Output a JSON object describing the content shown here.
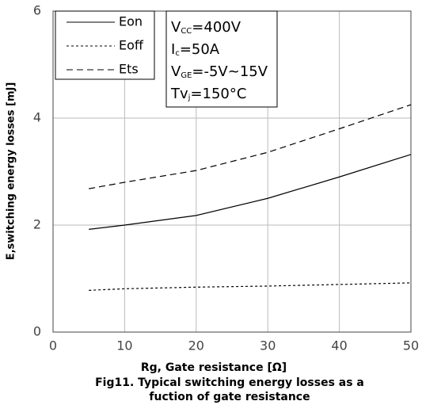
{
  "chart_data": {
    "type": "line",
    "xlabel": "Rg, Gate resistance [Ω]",
    "ylabel": "E,switching energy losses [mJ]",
    "caption": [
      "Fig11. Typical switching energy losses as a",
      "fuction of gate resistance"
    ],
    "x": [
      5,
      10,
      20,
      30,
      40,
      50
    ],
    "series": [
      {
        "name": "Eon",
        "color": "#000000",
        "dash": "solid",
        "values": [
          1.92,
          2.0,
          2.18,
          2.5,
          2.9,
          3.32
        ]
      },
      {
        "name": "Eoff",
        "color": "#000000",
        "dash": "dotted",
        "values": [
          0.78,
          0.81,
          0.84,
          0.86,
          0.89,
          0.92
        ]
      },
      {
        "name": "Ets",
        "color": "#000000",
        "dash": "dashed",
        "values": [
          2.68,
          2.8,
          3.02,
          3.36,
          3.8,
          4.25
        ]
      }
    ],
    "conditions": [
      {
        "main": "V",
        "sub": "CC",
        "rest": "=400V"
      },
      {
        "main": "I",
        "sub": "c",
        "rest": "=50A"
      },
      {
        "main": "V",
        "sub": "GE",
        "rest": "=-5V~15V"
      },
      {
        "main": "Tv",
        "sub": "j",
        "rest": "=150°C"
      }
    ],
    "xlim": [
      0,
      50
    ],
    "xticks": [
      0,
      10,
      20,
      30,
      40,
      50
    ],
    "ylim": [
      0,
      6
    ],
    "yticks": [
      0,
      2,
      4,
      6
    ],
    "grid": true,
    "legend": "upper left"
  }
}
